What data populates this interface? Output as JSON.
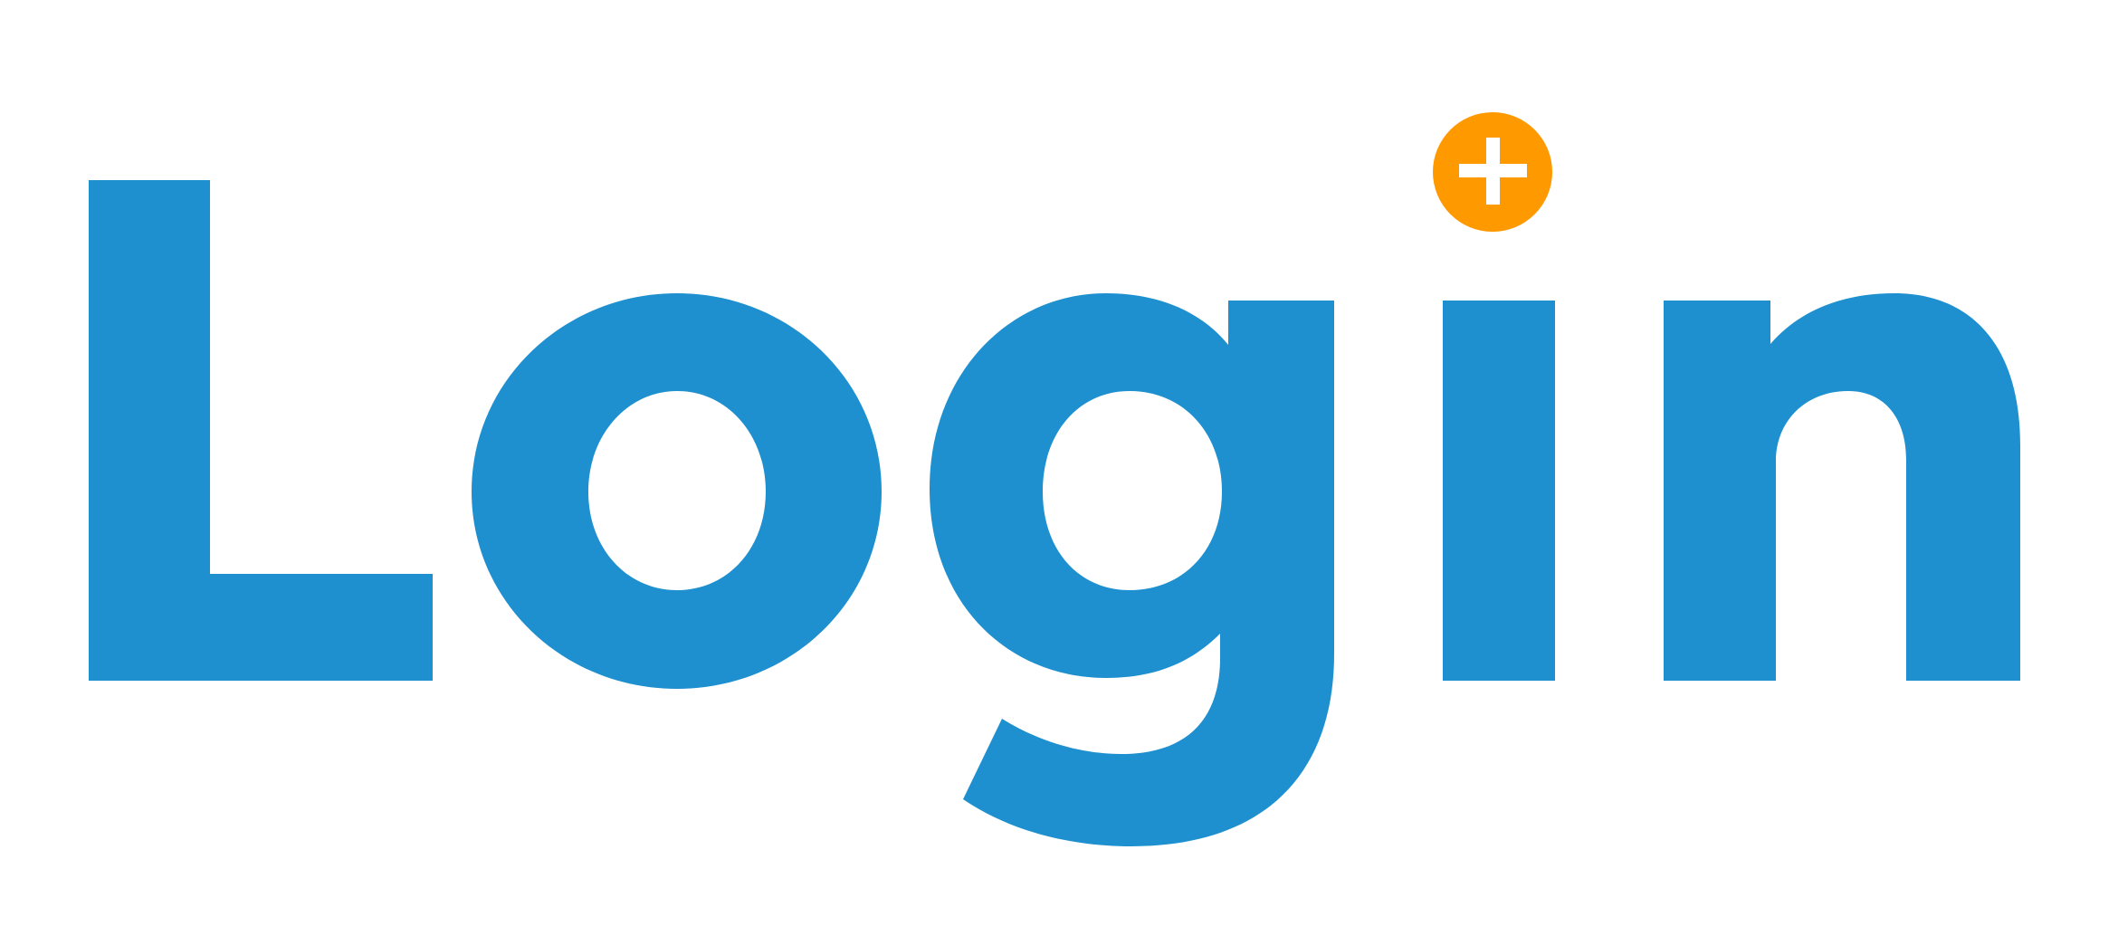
{
  "logo": {
    "wordmark": "Login",
    "plus_symbol": "+",
    "wordmark_color": "#1E90CF",
    "badge_color": "#FF9900",
    "badge_icon": "plus-icon"
  }
}
